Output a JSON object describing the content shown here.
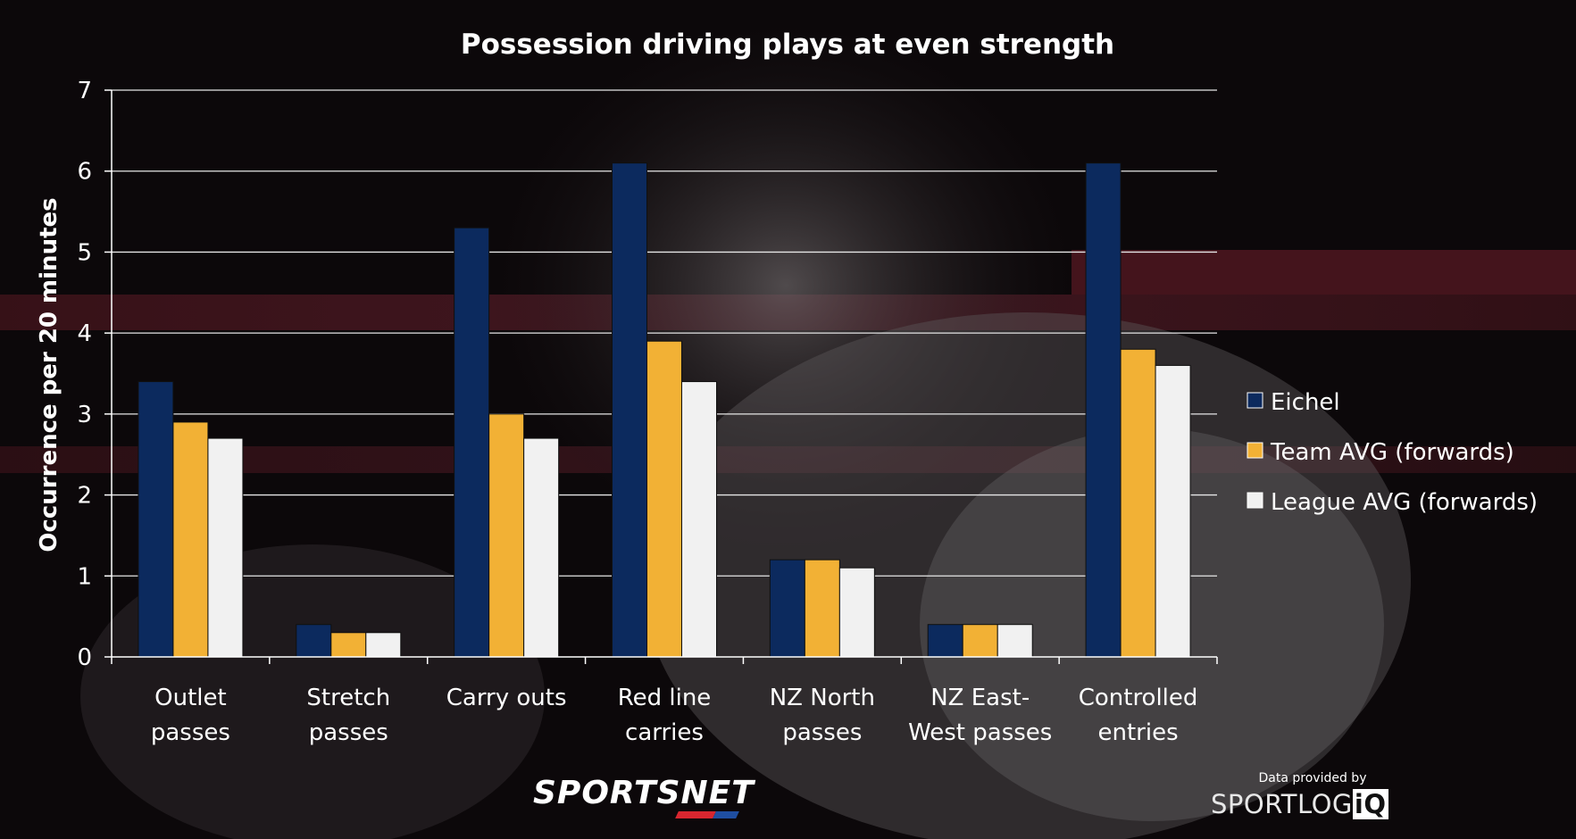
{
  "chart_data": {
    "type": "bar",
    "title": "Possession driving plays at even strength",
    "xlabel": "",
    "ylabel": "Occurrence per 20 minutes",
    "ylim": [
      0,
      7
    ],
    "yticks": [
      0,
      1,
      2,
      3,
      4,
      5,
      6,
      7
    ],
    "grid": true,
    "legend_position": "right",
    "categories": [
      [
        "Outlet",
        "passes"
      ],
      [
        "Stretch",
        "passes"
      ],
      [
        "Carry outs"
      ],
      [
        "Red line",
        "carries"
      ],
      [
        "NZ North",
        "passes"
      ],
      [
        "NZ East-",
        "West passes"
      ],
      [
        "Controlled",
        "entries"
      ]
    ],
    "series": [
      {
        "name": "Eichel",
        "color": "#0c2a5e",
        "values": [
          3.4,
          0.4,
          5.3,
          6.1,
          1.2,
          0.4,
          6.1
        ]
      },
      {
        "name": "Team AVG (forwards)",
        "color": "#f2b135",
        "values": [
          2.9,
          0.3,
          3.0,
          3.9,
          1.2,
          0.4,
          3.8
        ]
      },
      {
        "name": "League AVG (forwards)",
        "color": "#f1f1f1",
        "values": [
          2.7,
          0.3,
          2.7,
          3.4,
          1.1,
          0.4,
          3.6
        ]
      }
    ]
  },
  "credits": {
    "provider_label": "Data provided by",
    "provider_name_main": "SPORTLOG",
    "provider_name_iq": "iQ",
    "network_logo": "SPORTSNET"
  }
}
